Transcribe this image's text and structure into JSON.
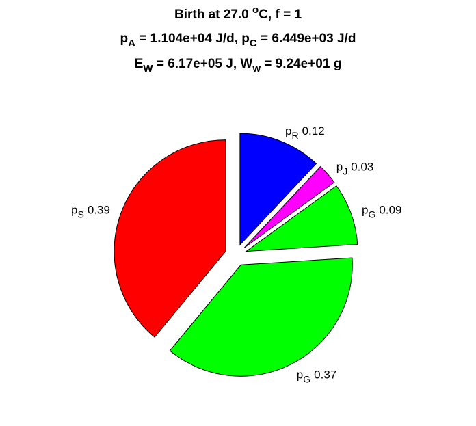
{
  "chart_data": {
    "type": "pie",
    "title": [
      [
        {
          "text": "Birth at 27.0 "
        },
        {
          "sup": "o"
        },
        {
          "text": "C, f = 1"
        }
      ],
      [
        {
          "text": "p"
        },
        {
          "sub": "A"
        },
        {
          "text": " = 1.104e+04 J/d, p"
        },
        {
          "sub": "C"
        },
        {
          "text": " = 6.449e+03 J/d"
        }
      ],
      [
        {
          "text": "E"
        },
        {
          "sub": "W"
        },
        {
          "text": " = 6.17e+05 J, W"
        },
        {
          "sub": "w"
        },
        {
          "text": " = 9.24e+01 g"
        }
      ]
    ],
    "categories": [
      [
        {
          "text": "p"
        },
        {
          "sub": "R"
        }
      ],
      [
        {
          "text": "p"
        },
        {
          "sub": "J"
        }
      ],
      [
        {
          "text": "p"
        },
        {
          "sub": "G"
        }
      ],
      [
        {
          "text": "p"
        },
        {
          "sub": "G"
        }
      ],
      [
        {
          "text": "p"
        },
        {
          "sub": "S"
        }
      ]
    ],
    "values": [
      0.12,
      0.03,
      0.09,
      0.37,
      0.39
    ],
    "colors": [
      "#0000ff",
      "#ff00ff",
      "#00ff00",
      "#00ff00",
      "#ff0000"
    ],
    "explode": true
  }
}
